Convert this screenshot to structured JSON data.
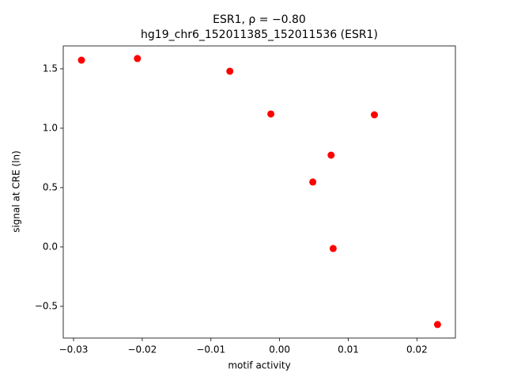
{
  "chart_data": {
    "type": "scatter",
    "title": "ESR1, ρ = −0.80",
    "subtitle": "hg19_chr6_152011385_152011536 (ESR1)",
    "x_label": "motif activity",
    "y_label": "signal at CRE (ln)",
    "color": "#ff0000",
    "x": [
      -0.02885,
      -0.0207,
      -0.00724,
      -0.00127,
      0.0138,
      0.0075,
      0.00484,
      0.0078,
      0.023
    ],
    "values": [
      1.573,
      1.587,
      1.48,
      1.12,
      1.113,
      0.773,
      0.547,
      -0.013,
      -0.653
    ],
    "xlim": [
      -0.0315,
      0.0256
    ],
    "ylim": [
      -0.767,
      1.693
    ],
    "xticks": [
      {
        "value": -0.03,
        "label": "−0.03"
      },
      {
        "value": -0.02,
        "label": "−0.02"
      },
      {
        "value": -0.01,
        "label": "−0.01"
      },
      {
        "value": 0,
        "label": "0.00"
      },
      {
        "value": 0.01,
        "label": "0.01"
      },
      {
        "value": 0.02,
        "label": "0.02"
      }
    ],
    "yticks": [
      {
        "value": -0.5,
        "label": "−0.5"
      },
      {
        "value": 0,
        "label": "0.0"
      },
      0.5,
      {
        "value": 1,
        "label": "1.0"
      },
      1.5
    ]
  }
}
